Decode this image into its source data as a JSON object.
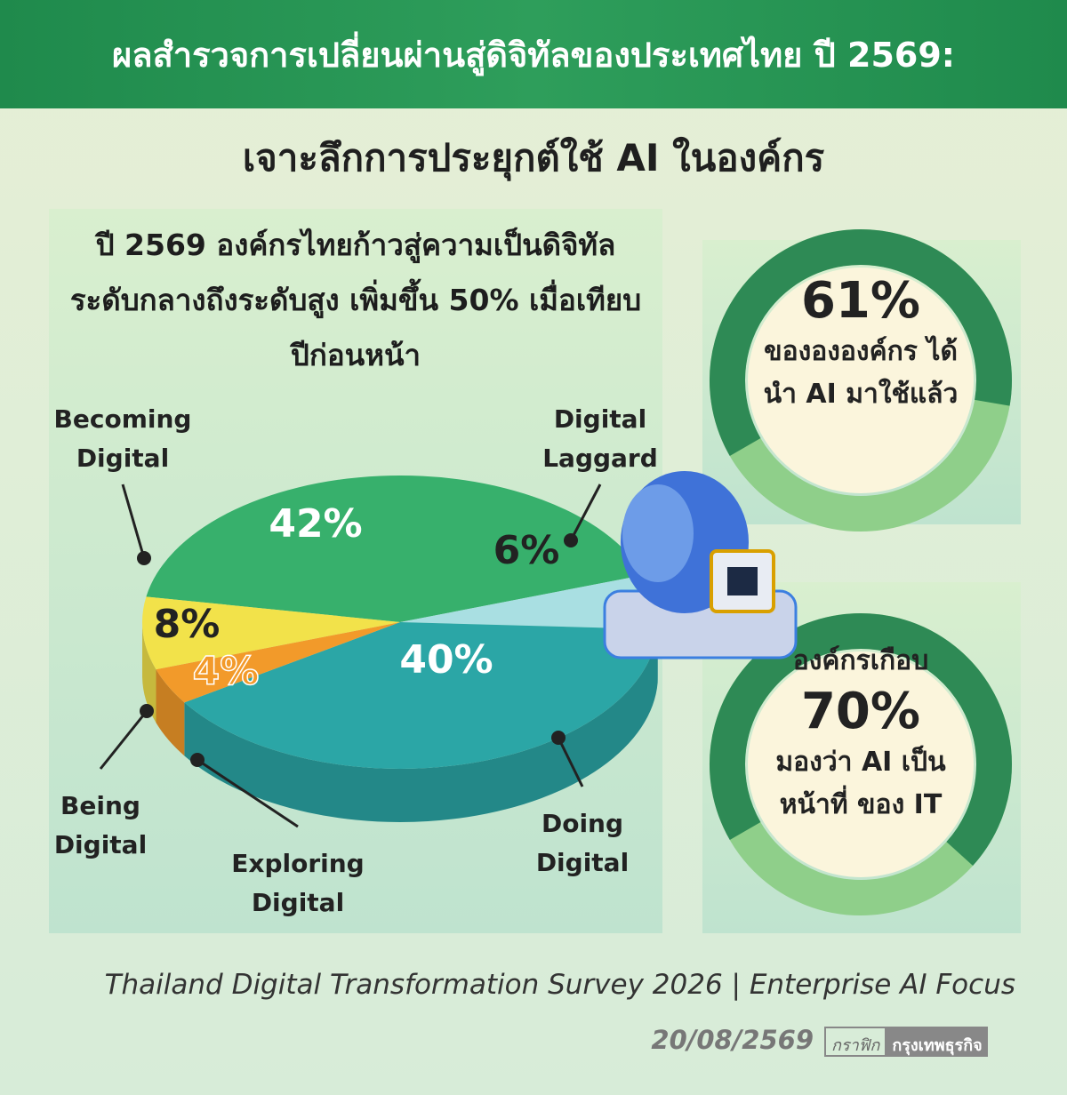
{
  "header": {
    "title": "ผลสำรวจการเปลี่ยนผ่านสู่ดิจิทัลของประเทศไทย ปี 2569:",
    "subtitle": "เจาะลึกการประยุกต์ใช้ AI ในองค์กร"
  },
  "chart_data": [
    {
      "type": "pie",
      "title": "ปี 2569 องค์กรไทยก้าวสู่ความเป็นดิจิทัล ระดับกลางถึงระดับสูง เพิ่มขึ้น 50% เมื่อเทียบปีก่อนหน้า",
      "categories": [
        "Becoming Digital",
        "Digital Laggard",
        "Doing Digital",
        "Exploring Digital",
        "Being Digital"
      ],
      "values": [
        42,
        6,
        40,
        4,
        8
      ],
      "value_labels": [
        "42%",
        "6%",
        "40%",
        "4%",
        "8%"
      ],
      "colors": [
        "#37b06c",
        "#a9dfe2",
        "#2ba6a6",
        "#f29a2a",
        "#f2e24a"
      ]
    },
    {
      "type": "donut",
      "value": 61,
      "value_label": "61%",
      "text_before": null,
      "text": "ของององค์กร ได้นำ AI มาใช้แล้ว",
      "color": "#2e8a55",
      "rest_color": "#8fcf8a"
    },
    {
      "type": "donut",
      "value": 70,
      "value_label": "70%",
      "text_before": "องค์กรเกือบ",
      "text": "มองว่า AI เป็นหน้าที่ ของ IT",
      "color": "#2e8a55",
      "rest_color": "#8fcf8a"
    }
  ],
  "footer": {
    "source": "Thailand Digital Transformation Survey 2026 | Enterprise AI Focus",
    "date": "20/08/2569",
    "credit_label": "กราฟิก",
    "credit": "กรุงเทพธุรกิจ"
  }
}
